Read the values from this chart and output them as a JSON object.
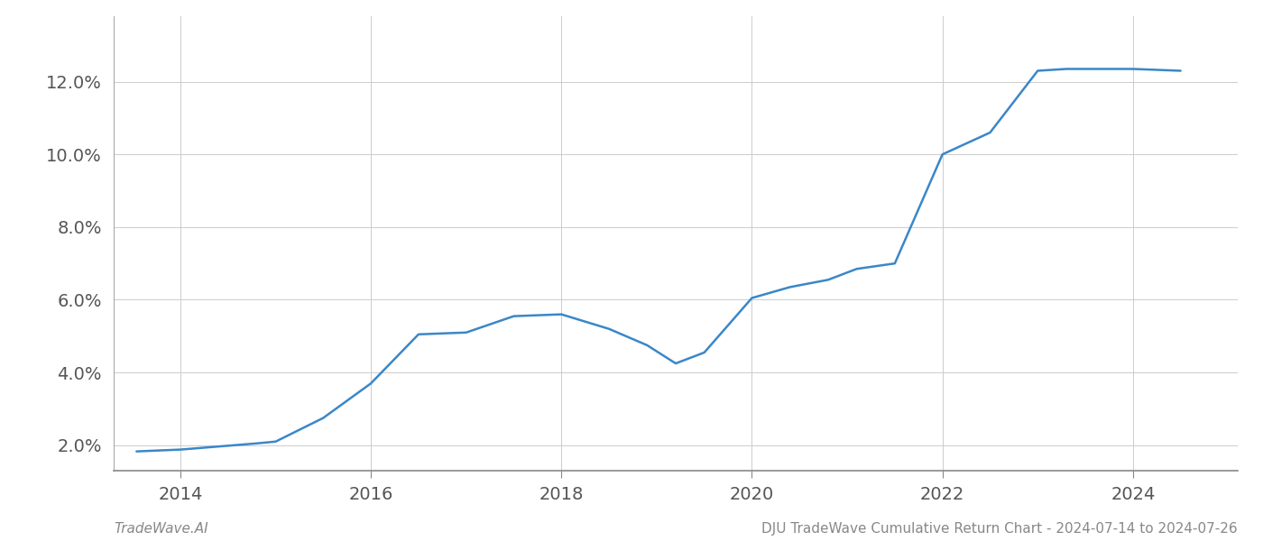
{
  "x_years": [
    2013.54,
    2014.0,
    2014.8,
    2015.0,
    2015.5,
    2016.0,
    2016.5,
    2017.0,
    2017.5,
    2018.0,
    2018.5,
    2018.9,
    2019.2,
    2019.5,
    2020.0,
    2020.4,
    2020.8,
    2021.1,
    2021.5,
    2022.0,
    2022.5,
    2023.0,
    2023.3,
    2023.7,
    2024.0,
    2024.5
  ],
  "y_values": [
    1.83,
    1.88,
    2.05,
    2.1,
    2.75,
    3.7,
    5.05,
    5.1,
    5.55,
    5.6,
    5.2,
    4.75,
    4.25,
    4.55,
    6.05,
    6.35,
    6.55,
    6.85,
    7.0,
    10.0,
    10.6,
    12.3,
    12.35,
    12.35,
    12.35,
    12.3
  ],
  "line_color": "#3a87c8",
  "line_width": 1.8,
  "background_color": "#ffffff",
  "grid_color": "#cccccc",
  "footer_left": "TradeWave.AI",
  "footer_right": "DJU TradeWave Cumulative Return Chart - 2024-07-14 to 2024-07-26",
  "ytick_labels": [
    "2.0%",
    "4.0%",
    "6.0%",
    "8.0%",
    "10.0%",
    "12.0%"
  ],
  "ytick_values": [
    2.0,
    4.0,
    6.0,
    8.0,
    10.0,
    12.0
  ],
  "xtick_values": [
    2014,
    2016,
    2018,
    2020,
    2022,
    2024
  ],
  "xlim": [
    2013.3,
    2025.1
  ],
  "ylim": [
    1.3,
    13.8
  ],
  "tick_label_color": "#555555",
  "footer_color": "#888888",
  "footer_fontsize": 11,
  "tick_fontsize": 14
}
